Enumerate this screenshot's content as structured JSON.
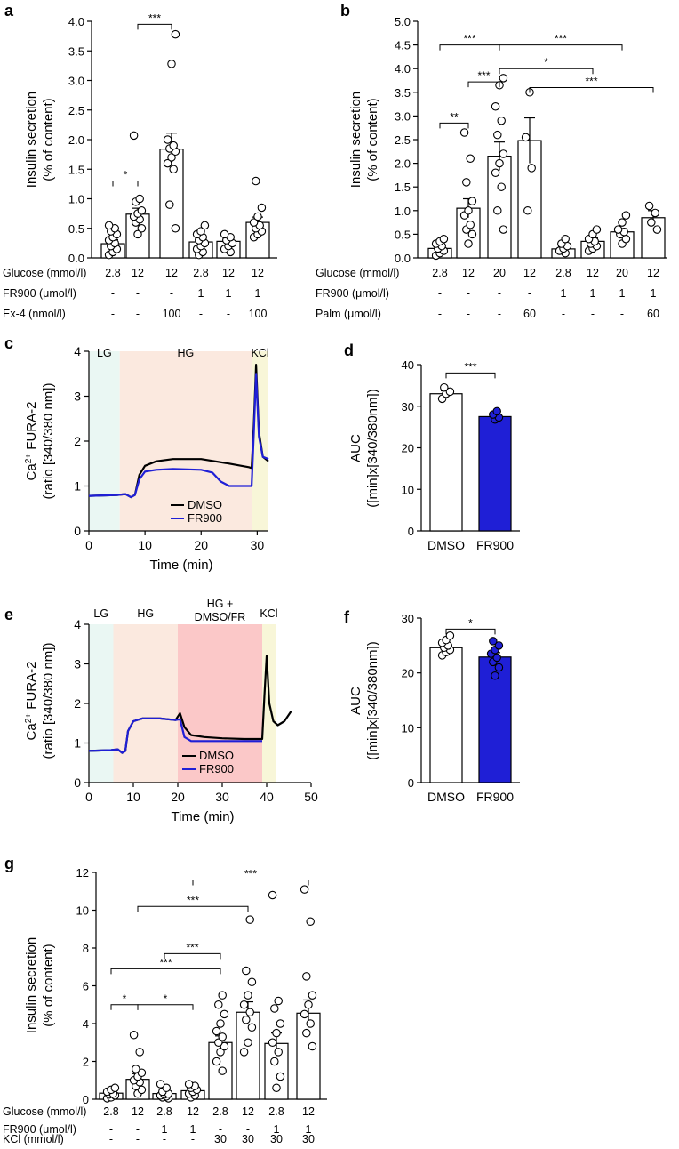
{
  "chart_data": [
    {
      "id": "a",
      "panel_label": "a",
      "type": "bar",
      "ylabel": [
        "Insulin secretion",
        "(% of content)"
      ],
      "ylim": [
        0,
        4
      ],
      "yticks": [
        "0.0",
        "0.5",
        "1.0",
        "1.5",
        "2.0",
        "2.5",
        "3.0",
        "3.5",
        "4.0"
      ],
      "means": [
        0.24,
        0.74,
        1.84,
        0.27,
        0.28,
        0.6
      ],
      "errors": [
        0.07,
        0.1,
        0.27,
        0.06,
        0.04,
        0.09
      ],
      "points": [
        [
          0.05,
          0.1,
          0.15,
          0.2,
          0.25,
          0.3,
          0.35,
          0.4,
          0.45,
          0.5,
          0.55
        ],
        [
          0.4,
          0.5,
          0.6,
          0.65,
          0.7,
          0.75,
          0.8,
          0.95,
          1.0,
          2.07
        ],
        [
          0.5,
          0.9,
          1.5,
          1.6,
          1.7,
          1.8,
          1.85,
          1.9,
          2.0,
          3.28,
          3.78
        ],
        [
          0.05,
          0.1,
          0.15,
          0.2,
          0.25,
          0.3,
          0.35,
          0.4,
          0.45,
          0.55
        ],
        [
          0.1,
          0.15,
          0.2,
          0.25,
          0.3,
          0.35,
          0.4
        ],
        [
          0.35,
          0.4,
          0.45,
          0.5,
          0.55,
          0.6,
          0.7,
          0.85,
          1.3
        ]
      ],
      "brackets": [
        {
          "from": 0,
          "to": 1,
          "y": 1.3,
          "label": "*"
        },
        {
          "from": 1,
          "to": 2,
          "y": 3.95,
          "label": "***"
        }
      ],
      "conditions": [
        {
          "label": "Glucose (mmol/l)",
          "values": [
            "2.8",
            "12",
            "12",
            "2.8",
            "12",
            "12"
          ]
        },
        {
          "label": "FR900 (μmol/l)",
          "values": [
            "-",
            "-",
            "-",
            "1",
            "1",
            "1"
          ]
        },
        {
          "label": "Ex-4 (nmol/l)",
          "values": [
            "-",
            "-",
            "100",
            "-",
            "-",
            "100"
          ]
        }
      ]
    },
    {
      "id": "b",
      "panel_label": "b",
      "type": "bar",
      "ylabel": [
        "Insulin secretion",
        "(% of content)"
      ],
      "ylim": [
        0,
        5
      ],
      "yticks": [
        "0.0",
        "0.5",
        "1.0",
        "1.5",
        "2.0",
        "2.5",
        "3.0",
        "3.5",
        "4.0",
        "4.5",
        "5.0"
      ],
      "means": [
        0.2,
        1.05,
        2.15,
        2.48,
        0.19,
        0.35,
        0.55,
        0.85
      ],
      "errors": [
        0.05,
        0.2,
        0.3,
        0.48,
        0.04,
        0.07,
        0.07,
        0.15
      ],
      "points": [
        [
          0.05,
          0.1,
          0.15,
          0.2,
          0.25,
          0.3,
          0.35,
          0.4
        ],
        [
          0.3,
          0.5,
          0.6,
          0.7,
          0.9,
          1.0,
          1.2,
          1.6,
          2.1,
          2.65
        ],
        [
          0.6,
          1.0,
          1.5,
          1.8,
          2.0,
          2.2,
          2.6,
          2.9,
          3.2,
          3.65,
          3.8
        ],
        [
          1.0,
          1.9,
          2.55,
          3.5
        ],
        [
          0.1,
          0.15,
          0.2,
          0.25,
          0.3,
          0.4
        ],
        [
          0.15,
          0.2,
          0.25,
          0.3,
          0.35,
          0.4,
          0.5,
          0.6
        ],
        [
          0.3,
          0.4,
          0.5,
          0.55,
          0.6,
          0.75,
          0.9
        ],
        [
          0.6,
          0.75,
          0.95,
          1.1
        ]
      ],
      "brackets": [
        {
          "from": 0,
          "to": 1,
          "y": 2.85,
          "label": "**"
        },
        {
          "from": 0,
          "to": 2,
          "y": 4.5,
          "label": "***"
        },
        {
          "from": 2,
          "to": 6,
          "y": 4.5,
          "label": "***"
        },
        {
          "from": 2,
          "to": 5,
          "y": 4.0,
          "label": "*"
        },
        {
          "from": 1,
          "to": 2,
          "y": 3.72,
          "label": "***"
        },
        {
          "from": 3,
          "to": 7,
          "y": 3.6,
          "label": "***"
        }
      ],
      "conditions": [
        {
          "label": "Glucose (mmol/l)",
          "values": [
            "2.8",
            "12",
            "20",
            "12",
            "2.8",
            "12",
            "20",
            "12"
          ]
        },
        {
          "label": "FR900 (μmol/l)",
          "values": [
            "-",
            "-",
            "-",
            "-",
            "1",
            "1",
            "1",
            "1"
          ]
        },
        {
          "label": "Palm (μmol/l)",
          "values": [
            "-",
            "-",
            "-",
            "60",
            "-",
            "-",
            "-",
            "60"
          ]
        }
      ]
    },
    {
      "id": "c",
      "panel_label": "c",
      "type": "line",
      "xlabel": "Time (min)",
      "ylabel": [
        "Ca",
        "2+",
        " FURA-2",
        "(ratio [340/380 nm])"
      ],
      "xlim": [
        0,
        32
      ],
      "ylim": [
        0,
        4
      ],
      "xticks": [
        "0",
        "10",
        "20",
        "30"
      ],
      "yticks": [
        "0",
        "1",
        "2",
        "3",
        "4"
      ],
      "phases": [
        {
          "label": "LG",
          "start": 0,
          "end": 5.5,
          "color": "#eaf7f3"
        },
        {
          "label": "HG",
          "start": 5.5,
          "end": 29,
          "color": "#fbe9df"
        },
        {
          "label": "KCl",
          "start": 29,
          "end": 32,
          "color": "#f8f6d8"
        }
      ],
      "series": [
        {
          "name": "DMSO",
          "color": "#000000",
          "points": [
            [
              0,
              0.78
            ],
            [
              5,
              0.8
            ],
            [
              6.5,
              0.82
            ],
            [
              7.5,
              0.75
            ],
            [
              8.2,
              0.8
            ],
            [
              9,
              1.25
            ],
            [
              10,
              1.45
            ],
            [
              12,
              1.55
            ],
            [
              15,
              1.6
            ],
            [
              20,
              1.6
            ],
            [
              25,
              1.5
            ],
            [
              28.5,
              1.42
            ],
            [
              29,
              1.4
            ],
            [
              29.4,
              2.4
            ],
            [
              29.8,
              3.7
            ],
            [
              30.3,
              2.2
            ],
            [
              31,
              1.65
            ],
            [
              32,
              1.55
            ]
          ]
        },
        {
          "name": "FR900",
          "color": "#1f1fd6",
          "points": [
            [
              0,
              0.78
            ],
            [
              5,
              0.8
            ],
            [
              6.5,
              0.82
            ],
            [
              7.5,
              0.75
            ],
            [
              8.2,
              0.8
            ],
            [
              9,
              1.15
            ],
            [
              10,
              1.32
            ],
            [
              12,
              1.36
            ],
            [
              15,
              1.38
            ],
            [
              20,
              1.36
            ],
            [
              22,
              1.3
            ],
            [
              23.5,
              1.1
            ],
            [
              25,
              1.0
            ],
            [
              28.5,
              1.0
            ],
            [
              29,
              1.0
            ],
            [
              29.4,
              2.2
            ],
            [
              29.8,
              3.5
            ],
            [
              30.3,
              2.1
            ],
            [
              31,
              1.65
            ],
            [
              32,
              1.6
            ]
          ]
        }
      ]
    },
    {
      "id": "d",
      "panel_label": "d",
      "type": "bar",
      "ylabel": [
        "AUC",
        "([min]x[340/380nm])"
      ],
      "ylim": [
        0,
        40
      ],
      "yticks": [
        "0",
        "10",
        "20",
        "30",
        "40"
      ],
      "categories": [
        "DMSO",
        "FR900"
      ],
      "means": [
        33,
        27.5
      ],
      "errors": [
        0.7,
        0.8
      ],
      "fills": [
        "#ffffff",
        "#1f1fd6"
      ],
      "point_fills": [
        "#ffffff",
        "#1f1fd6"
      ],
      "points": [
        [
          31.8,
          33,
          33.5,
          34.5
        ],
        [
          26.8,
          27.3,
          28,
          28.8
        ]
      ],
      "brackets": [
        {
          "from": 0,
          "to": 1,
          "y": 38,
          "label": "***"
        }
      ]
    },
    {
      "id": "e",
      "panel_label": "e",
      "type": "line",
      "xlabel": "Time (min)",
      "ylabel": [
        "Ca",
        "2+",
        " FURA-2",
        "(ratio [340/380 nm])"
      ],
      "xlim": [
        0,
        50
      ],
      "ylim": [
        0,
        4
      ],
      "xticks": [
        "0",
        "10",
        "20",
        "30",
        "40",
        "50"
      ],
      "yticks": [
        "0",
        "1",
        "2",
        "3",
        "4"
      ],
      "phases": [
        {
          "label": "LG",
          "start": 0,
          "end": 5.5,
          "color": "#eaf7f3"
        },
        {
          "label": "HG",
          "start": 5.5,
          "end": 20,
          "color": "#fbe9df"
        },
        {
          "label": "HG +",
          "label2": "DMSO/FR",
          "start": 20,
          "end": 39,
          "color": "#fbc8c8"
        },
        {
          "label": "KCl",
          "start": 39,
          "end": 42,
          "color": "#f8f6d8"
        }
      ],
      "series": [
        {
          "name": "DMSO",
          "color": "#000000",
          "points": [
            [
              0,
              0.8
            ],
            [
              5,
              0.82
            ],
            [
              6.5,
              0.84
            ],
            [
              7.5,
              0.75
            ],
            [
              8.2,
              0.8
            ],
            [
              8.8,
              1.3
            ],
            [
              10,
              1.55
            ],
            [
              12,
              1.62
            ],
            [
              16,
              1.62
            ],
            [
              19.5,
              1.58
            ],
            [
              20.5,
              1.75
            ],
            [
              21.5,
              1.4
            ],
            [
              23,
              1.2
            ],
            [
              26,
              1.15
            ],
            [
              30,
              1.12
            ],
            [
              35,
              1.1
            ],
            [
              39,
              1.1
            ],
            [
              39.5,
              2.2
            ],
            [
              40,
              3.2
            ],
            [
              40.6,
              2.0
            ],
            [
              41.5,
              1.55
            ],
            [
              42.5,
              1.45
            ],
            [
              44,
              1.55
            ],
            [
              45.5,
              1.8
            ]
          ]
        },
        {
          "name": "FR900",
          "color": "#1f1fd6",
          "points": [
            [
              0,
              0.8
            ],
            [
              5,
              0.82
            ],
            [
              6.5,
              0.84
            ],
            [
              7.5,
              0.75
            ],
            [
              8.2,
              0.8
            ],
            [
              8.8,
              1.3
            ],
            [
              10,
              1.55
            ],
            [
              12,
              1.62
            ],
            [
              16,
              1.62
            ],
            [
              19.5,
              1.58
            ],
            [
              20.5,
              1.6
            ],
            [
              21.5,
              1.15
            ],
            [
              23,
              1.05
            ],
            [
              26,
              1.05
            ],
            [
              30,
              1.05
            ],
            [
              35,
              1.05
            ],
            [
              39,
              1.05
            ]
          ]
        }
      ]
    },
    {
      "id": "f",
      "panel_label": "f",
      "type": "bar",
      "ylabel": [
        "AUC",
        "([min]x[340/380nm])"
      ],
      "ylim": [
        0,
        30
      ],
      "yticks": [
        "0",
        "10",
        "20",
        "30"
      ],
      "categories": [
        "DMSO",
        "FR900"
      ],
      "means": [
        24.6,
        22.9
      ],
      "errors": [
        0.6,
        0.8
      ],
      "fills": [
        "#ffffff",
        "#1f1fd6"
      ],
      "point_fills": [
        "#ffffff",
        "#1f1fd6"
      ],
      "points": [
        [
          23.2,
          23.8,
          24.2,
          24.6,
          25.0,
          25.5,
          26.0,
          26.8
        ],
        [
          19.5,
          21.0,
          22.0,
          22.8,
          23.5,
          24.2,
          25.0,
          25.8
        ]
      ],
      "brackets": [
        {
          "from": 0,
          "to": 1,
          "y": 28,
          "label": "*"
        }
      ]
    },
    {
      "id": "g",
      "panel_label": "g",
      "type": "bar",
      "ylabel": [
        "Insulin secretion",
        "(% of content)"
      ],
      "ylim": [
        0,
        12
      ],
      "yticks": [
        "0",
        "2",
        "4",
        "6",
        "8",
        "10",
        "12"
      ],
      "means": [
        0.32,
        1.05,
        0.3,
        0.45,
        3.0,
        4.6,
        2.95,
        4.55
      ],
      "errors": [
        0.1,
        0.3,
        0.08,
        0.1,
        0.35,
        0.55,
        0.55,
        0.7
      ],
      "points": [
        [
          0.05,
          0.1,
          0.2,
          0.25,
          0.3,
          0.4,
          0.5,
          0.6
        ],
        [
          0.3,
          0.5,
          0.7,
          0.9,
          1.0,
          1.2,
          1.4,
          1.6,
          2.5,
          3.4
        ],
        [
          0.05,
          0.1,
          0.15,
          0.2,
          0.25,
          0.3,
          0.4,
          0.6,
          0.8
        ],
        [
          0.1,
          0.2,
          0.3,
          0.4,
          0.5,
          0.6,
          0.7,
          0.8
        ],
        [
          1.5,
          2.0,
          2.5,
          2.8,
          3.0,
          3.3,
          3.6,
          4.0,
          4.5,
          5.0,
          5.5
        ],
        [
          2.5,
          3.0,
          3.8,
          4.2,
          4.6,
          5.0,
          5.5,
          6.2,
          6.8,
          9.5
        ],
        [
          0.6,
          1.2,
          2.0,
          2.5,
          3.0,
          3.5,
          4.0,
          4.8,
          5.2,
          10.8
        ],
        [
          2.8,
          3.5,
          4.0,
          4.5,
          5.0,
          5.5,
          6.5,
          9.4,
          11.1
        ]
      ],
      "brackets": [
        {
          "from": 0,
          "to": 1,
          "y": 5.0,
          "label": "*"
        },
        {
          "from": 1,
          "to": 3,
          "y": 5.0,
          "label": "*"
        },
        {
          "from": 0,
          "to": 4,
          "y": 6.9,
          "label": "***"
        },
        {
          "from": 2,
          "to": 4,
          "y": 7.7,
          "label": "***"
        },
        {
          "from": 1,
          "to": 5,
          "y": 10.2,
          "label": "***"
        },
        {
          "from": 3,
          "to": 7,
          "y": 11.6,
          "label": "***"
        }
      ],
      "conditions": [
        {
          "label": "Glucose (mmol/l)",
          "values": [
            "2.8",
            "12",
            "2.8",
            "12",
            "2.8",
            "12",
            "2.8",
            "12"
          ]
        },
        {
          "label": "FR900 (μmol/l)",
          "values": [
            "-",
            "-",
            "1",
            "1",
            "-",
            "-",
            "1",
            "1"
          ]
        },
        {
          "label": "KCl (mmol/l)",
          "values": [
            "-",
            "-",
            "-",
            "-",
            "30",
            "30",
            "30",
            "30"
          ]
        }
      ]
    }
  ]
}
